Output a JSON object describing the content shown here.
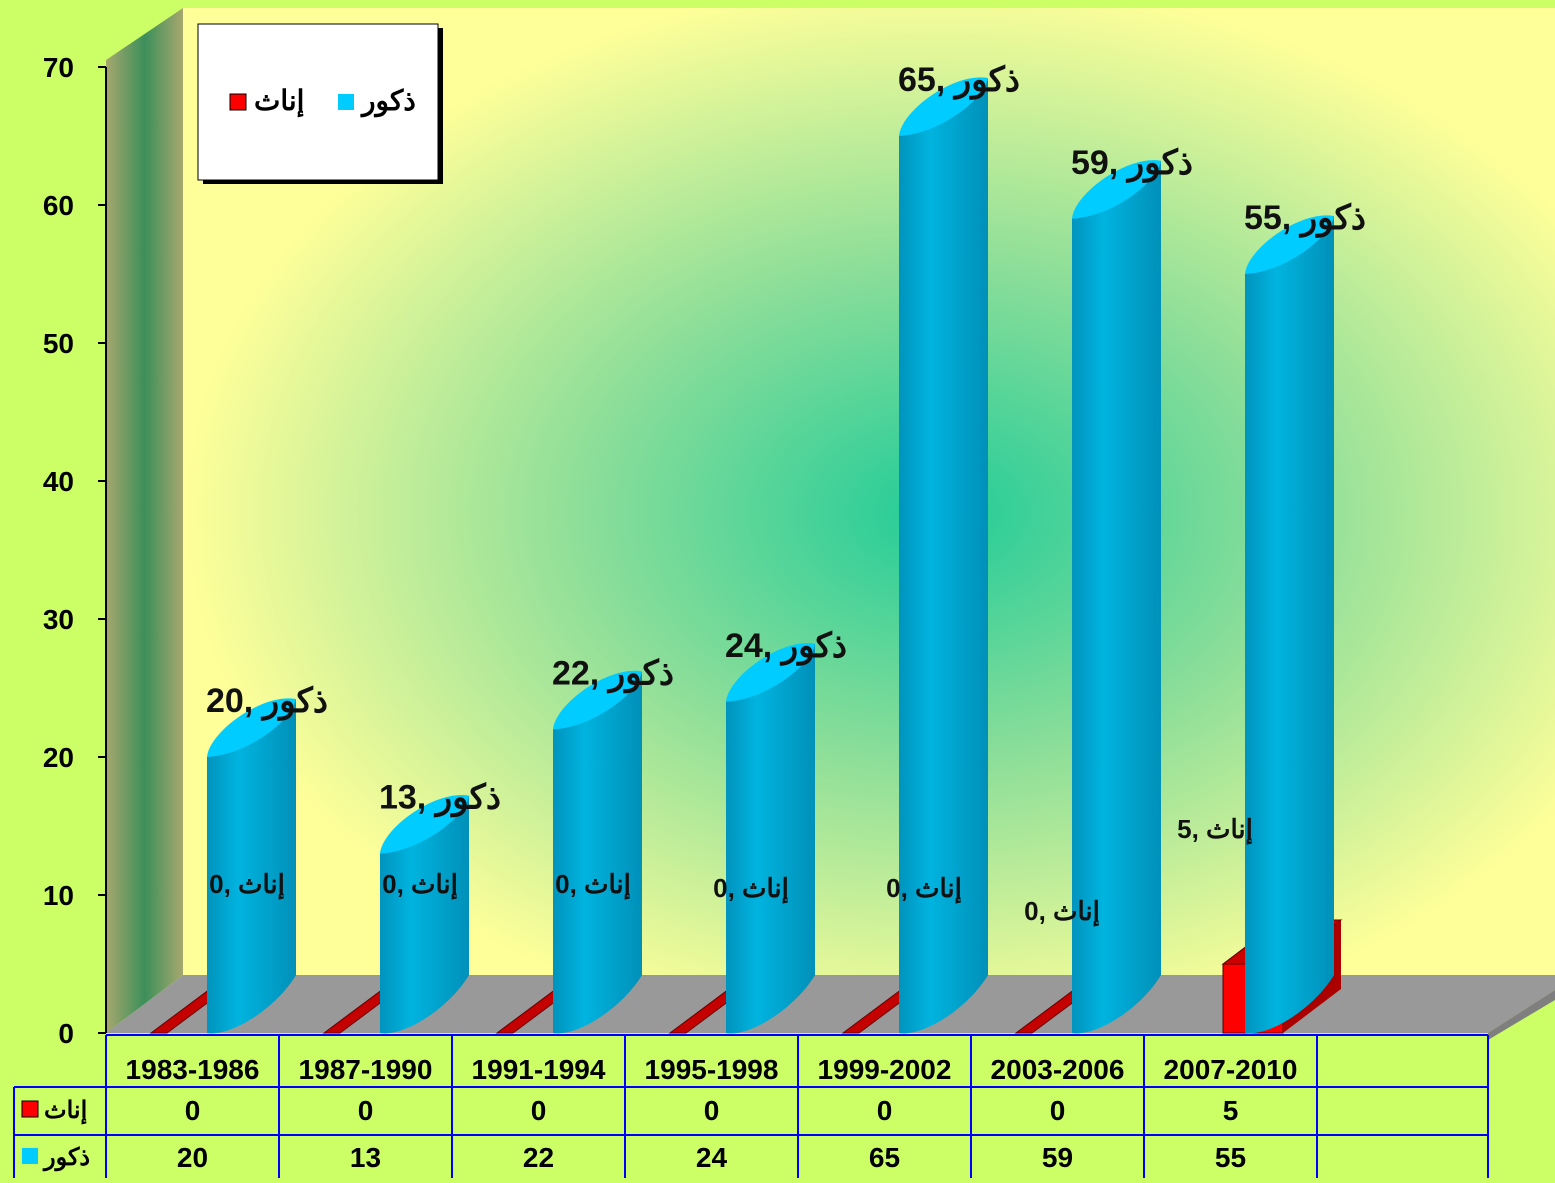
{
  "chart_data": {
    "type": "bar",
    "title": "",
    "xlabel": "",
    "ylabel": "",
    "ylim": [
      0,
      70
    ],
    "yticks": [
      0,
      10,
      20,
      30,
      40,
      50,
      60,
      70
    ],
    "categories": [
      "1983-1986",
      "1987-1990",
      "1991-1994",
      "1995-1998",
      "1999-2002",
      "2003-2006",
      "2007-2010"
    ],
    "series": [
      {
        "name": "إناث",
        "color": "#ff0000",
        "values": [
          0,
          0,
          0,
          0,
          0,
          0,
          5
        ]
      },
      {
        "name": "ذكور",
        "color": "#00ccff",
        "values": [
          20,
          13,
          22,
          24,
          65,
          59,
          55
        ]
      }
    ],
    "data_label_separator": ", ",
    "legend": {
      "placement": "top-left",
      "entries": [
        "ذكور",
        "إناث"
      ]
    },
    "data_table": true,
    "grid": false
  },
  "colors": {
    "background": "#ccff66",
    "plot_wall": "#ffff99",
    "plot_glow": "#22cc99",
    "floor": "#999999",
    "side_wall": "#999966",
    "cylinder_body": "#00a8d4",
    "cylinder_top": "#00ccff",
    "female_bar": "#ff0000",
    "table_border": "#0000ff"
  },
  "icons": {
    "legend_male": "cyan-square-icon",
    "legend_female": "red-square-icon"
  }
}
